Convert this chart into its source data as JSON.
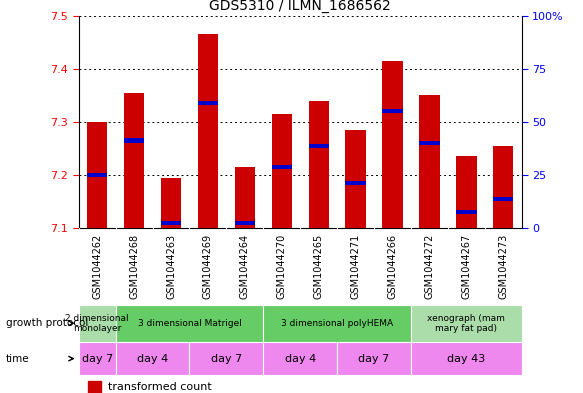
{
  "title": "GDS5310 / ILMN_1686562",
  "samples": [
    "GSM1044262",
    "GSM1044268",
    "GSM1044263",
    "GSM1044269",
    "GSM1044264",
    "GSM1044270",
    "GSM1044265",
    "GSM1044271",
    "GSM1044266",
    "GSM1044272",
    "GSM1044267",
    "GSM1044273"
  ],
  "bar_tops": [
    7.3,
    7.355,
    7.195,
    7.465,
    7.215,
    7.315,
    7.34,
    7.285,
    7.415,
    7.35,
    7.235,
    7.255
  ],
  "bar_base": 7.1,
  "percentile_vals": [
    7.2,
    7.265,
    7.11,
    7.335,
    7.11,
    7.215,
    7.255,
    7.185,
    7.32,
    7.26,
    7.13,
    7.155
  ],
  "ylim": [
    7.1,
    7.5
  ],
  "yticks_left": [
    7.1,
    7.2,
    7.3,
    7.4,
    7.5
  ],
  "yticks_right": [
    0,
    25,
    50,
    75,
    100
  ],
  "bar_color": "#cc0000",
  "percentile_color": "#0000cc",
  "bg_color": "#ffffff",
  "tick_label_bg": "#cccccc",
  "growth_protocol_groups": [
    {
      "label": "2 dimensional\nmonolayer",
      "start": 0,
      "end": 1,
      "color": "#aaddaa"
    },
    {
      "label": "3 dimensional Matrigel",
      "start": 1,
      "end": 5,
      "color": "#66cc66"
    },
    {
      "label": "3 dimensional polyHEMA",
      "start": 5,
      "end": 9,
      "color": "#66cc66"
    },
    {
      "label": "xenograph (mam\nmary fat pad)",
      "start": 9,
      "end": 12,
      "color": "#aaddaa"
    }
  ],
  "time_groups": [
    {
      "label": "day 7",
      "start": 0,
      "end": 1
    },
    {
      "label": "day 4",
      "start": 1,
      "end": 3
    },
    {
      "label": "day 7",
      "start": 3,
      "end": 5
    },
    {
      "label": "day 4",
      "start": 5,
      "end": 7
    },
    {
      "label": "day 7",
      "start": 7,
      "end": 9
    },
    {
      "label": "day 43",
      "start": 9,
      "end": 12
    }
  ],
  "time_color": "#ee88ee",
  "gp_label": "growth protocol",
  "time_label": "time"
}
